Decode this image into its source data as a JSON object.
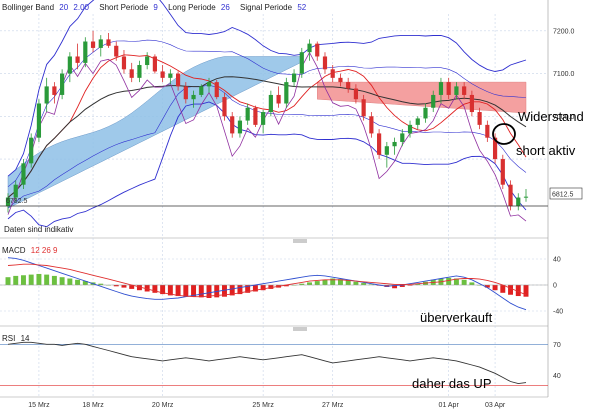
{
  "colors": {
    "up": "#2a9a3a",
    "down": "#d83030",
    "bollinger": "#3030d0",
    "ichimoku_cloud": "#8ec0e6",
    "resistance_zone": "#f4a0a0",
    "ma_red": "#e02020",
    "ma_dark": "#333333",
    "purple": "#9030a0",
    "macd_line": "#3050d0",
    "signal_line": "#e03030",
    "rsi_line": "#333333",
    "rsi_band": "#5080c0"
  },
  "main": {
    "legend": {
      "bollinger": "Bollinger Band",
      "bb_period": "20",
      "bb_dev": "2.00",
      "short_label": "Short Periode",
      "short_val": "9",
      "long_label": "Long Periode",
      "long_val": "26",
      "signal_label": "Signal Periode",
      "signal_val": "52"
    },
    "support_label": "6782.5",
    "current_price": "6812.5",
    "note": "Daten sind indikativ",
    "annotation_resistance": "Widerstand",
    "annotation_short": "short aktiv"
  },
  "macd": {
    "label": "MACD",
    "params": "12  26  9",
    "annotation": "überverkauft"
  },
  "rsi": {
    "label": "RSI",
    "param": "14",
    "annotation": "daher das UP"
  },
  "chart_data": [
    {
      "type": "candlestick",
      "title": "",
      "ylim": [
        6720,
        7230
      ],
      "y_ticks": [
        7200.0,
        7100.0,
        7000.0,
        6900.0
      ],
      "y_tick_labels": [
        "7200.0",
        "7100.0",
        "7000.0",
        ""
      ],
      "x_ticks": [
        "15 Mrz",
        "18 Mrz",
        "20 Mrz",
        "25 Mrz",
        "27 Mrz",
        "01 Apr",
        "03 Apr"
      ],
      "support": 6782.5,
      "last": 6812.5,
      "candles": [
        [
          6790,
          6820,
          6775,
          6810
        ],
        [
          6810,
          6850,
          6800,
          6840
        ],
        [
          6840,
          6900,
          6830,
          6890
        ],
        [
          6890,
          6960,
          6880,
          6950
        ],
        [
          6950,
          7040,
          6940,
          7030
        ],
        [
          7030,
          7090,
          7010,
          7070
        ],
        [
          7070,
          7080,
          7030,
          7050
        ],
        [
          7050,
          7110,
          7040,
          7100
        ],
        [
          7100,
          7150,
          7080,
          7140
        ],
        [
          7140,
          7170,
          7110,
          7125
        ],
        [
          7125,
          7185,
          7115,
          7175
        ],
        [
          7175,
          7200,
          7150,
          7160
        ],
        [
          7160,
          7190,
          7140,
          7180
        ],
        [
          7180,
          7195,
          7160,
          7165
        ],
        [
          7165,
          7175,
          7130,
          7140
        ],
        [
          7140,
          7155,
          7100,
          7110
        ],
        [
          7110,
          7125,
          7080,
          7090
        ],
        [
          7090,
          7130,
          7080,
          7120
        ],
        [
          7120,
          7150,
          7110,
          7140
        ],
        [
          7140,
          7145,
          7100,
          7105
        ],
        [
          7105,
          7120,
          7080,
          7090
        ],
        [
          7090,
          7110,
          7075,
          7100
        ],
        [
          7100,
          7105,
          7060,
          7070
        ],
        [
          7070,
          7080,
          7030,
          7040
        ],
        [
          7040,
          7060,
          7020,
          7050
        ],
        [
          7050,
          7075,
          7045,
          7070
        ],
        [
          7070,
          7090,
          7055,
          7080
        ],
        [
          7080,
          7085,
          7040,
          7045
        ],
        [
          7045,
          7055,
          6990,
          7000
        ],
        [
          7000,
          7010,
          6950,
          6960
        ],
        [
          6960,
          7000,
          6950,
          6990
        ],
        [
          6990,
          7030,
          6980,
          7020
        ],
        [
          7020,
          7025,
          6975,
          6980
        ],
        [
          6980,
          7015,
          6960,
          7010
        ],
        [
          7010,
          7060,
          7000,
          7050
        ],
        [
          7050,
          7070,
          7020,
          7030
        ],
        [
          7030,
          7090,
          7020,
          7080
        ],
        [
          7080,
          7110,
          7070,
          7100
        ],
        [
          7100,
          7160,
          7090,
          7150
        ],
        [
          7150,
          7180,
          7130,
          7170
        ],
        [
          7170,
          7175,
          7130,
          7140
        ],
        [
          7140,
          7150,
          7100,
          7110
        ],
        [
          7110,
          7120,
          7080,
          7090
        ],
        [
          7090,
          7100,
          7070,
          7080
        ],
        [
          7080,
          7090,
          7055,
          7065
        ],
        [
          7065,
          7075,
          7030,
          7040
        ],
        [
          7040,
          7050,
          6990,
          7000
        ],
        [
          7000,
          7010,
          6950,
          6960
        ],
        [
          6960,
          6970,
          6900,
          6910
        ],
        [
          6910,
          6940,
          6880,
          6930
        ],
        [
          6930,
          6950,
          6910,
          6940
        ],
        [
          6940,
          6970,
          6930,
          6960
        ],
        [
          6960,
          6990,
          6950,
          6980
        ],
        [
          6980,
          7000,
          6970,
          6995
        ],
        [
          6995,
          7030,
          6985,
          7020
        ],
        [
          7020,
          7060,
          7010,
          7050
        ],
        [
          7050,
          7090,
          7030,
          7080
        ],
        [
          7080,
          7090,
          7040,
          7050
        ],
        [
          7050,
          7080,
          7040,
          7070
        ],
        [
          7070,
          7080,
          7040,
          7050
        ],
        [
          7050,
          7060,
          7000,
          7010
        ],
        [
          7010,
          7020,
          6970,
          6980
        ],
        [
          6980,
          6990,
          6940,
          6950
        ],
        [
          6950,
          6960,
          6890,
          6900
        ],
        [
          6900,
          6910,
          6830,
          6840
        ],
        [
          6840,
          6850,
          6780,
          6790
        ],
        [
          6790,
          6820,
          6780,
          6810
        ],
        [
          6810,
          6830,
          6800,
          6812
        ]
      ]
    },
    {
      "type": "macd",
      "ylim": [
        -60,
        60
      ],
      "y_ticks": [
        40,
        0,
        -40
      ],
      "histogram": [
        12,
        14,
        15,
        16,
        17,
        16,
        14,
        12,
        10,
        8,
        6,
        4,
        2,
        0,
        -2,
        -4,
        -6,
        -8,
        -10,
        -12,
        -14,
        -16,
        -17,
        -18,
        -18,
        -19,
        -20,
        -19,
        -18,
        -16,
        -14,
        -12,
        -10,
        -8,
        -6,
        -4,
        -2,
        0,
        2,
        4,
        6,
        8,
        10,
        9,
        7,
        5,
        3,
        1,
        -1,
        -3,
        -5,
        -3,
        -1,
        2,
        5,
        8,
        10,
        11,
        10,
        8,
        4,
        0,
        -4,
        -8,
        -12,
        -15,
        -17,
        -18
      ],
      "macd_line": [
        42,
        41,
        38,
        34,
        30,
        26,
        22,
        18,
        14,
        10,
        6,
        2,
        -2,
        -6,
        -10,
        -14,
        -17,
        -19,
        -21,
        -22,
        -22,
        -21,
        -20,
        -18,
        -16,
        -14,
        -12,
        -10,
        -8,
        -6,
        -4,
        -2,
        0,
        2,
        4,
        6,
        8,
        10,
        12,
        14,
        15,
        14,
        12,
        10,
        8,
        6,
        4,
        2,
        0,
        -2,
        -1,
        0,
        2,
        4,
        6,
        8,
        10,
        12,
        14,
        12,
        8,
        2,
        -4,
        -12,
        -20,
        -28,
        -34,
        -38
      ],
      "signal_line": [
        30,
        31,
        32,
        32,
        31,
        30,
        28,
        26,
        24,
        21,
        18,
        15,
        12,
        9,
        6,
        3,
        0,
        -3,
        -6,
        -9,
        -12,
        -14,
        -16,
        -17,
        -18,
        -18,
        -17,
        -16,
        -15,
        -14,
        -12,
        -10,
        -8,
        -6,
        -4,
        -2,
        0,
        2,
        4,
        6,
        7,
        8,
        8,
        8,
        7,
        6,
        5,
        4,
        3,
        2,
        1,
        1,
        1,
        2,
        3,
        4,
        5,
        7,
        9,
        10,
        10,
        9,
        7,
        4,
        0,
        -5,
        -10,
        -15
      ]
    },
    {
      "type": "line",
      "ylim": [
        20,
        80
      ],
      "y_ticks": [
        70,
        40
      ],
      "bands": [
        70,
        30
      ],
      "values": [
        70,
        71,
        72,
        72,
        71,
        70,
        70,
        69,
        70,
        71,
        70,
        68,
        66,
        64,
        62,
        60,
        58,
        57,
        56,
        55,
        54,
        55,
        56,
        57,
        56,
        55,
        54,
        55,
        56,
        57,
        58,
        57,
        56,
        55,
        56,
        57,
        58,
        59,
        60,
        58,
        56,
        54,
        52,
        53,
        54,
        55,
        56,
        57,
        58,
        57,
        56,
        55,
        54,
        55,
        56,
        57,
        56,
        55,
        54,
        52,
        50,
        48,
        45,
        42,
        38,
        34,
        32,
        33
      ]
    }
  ]
}
